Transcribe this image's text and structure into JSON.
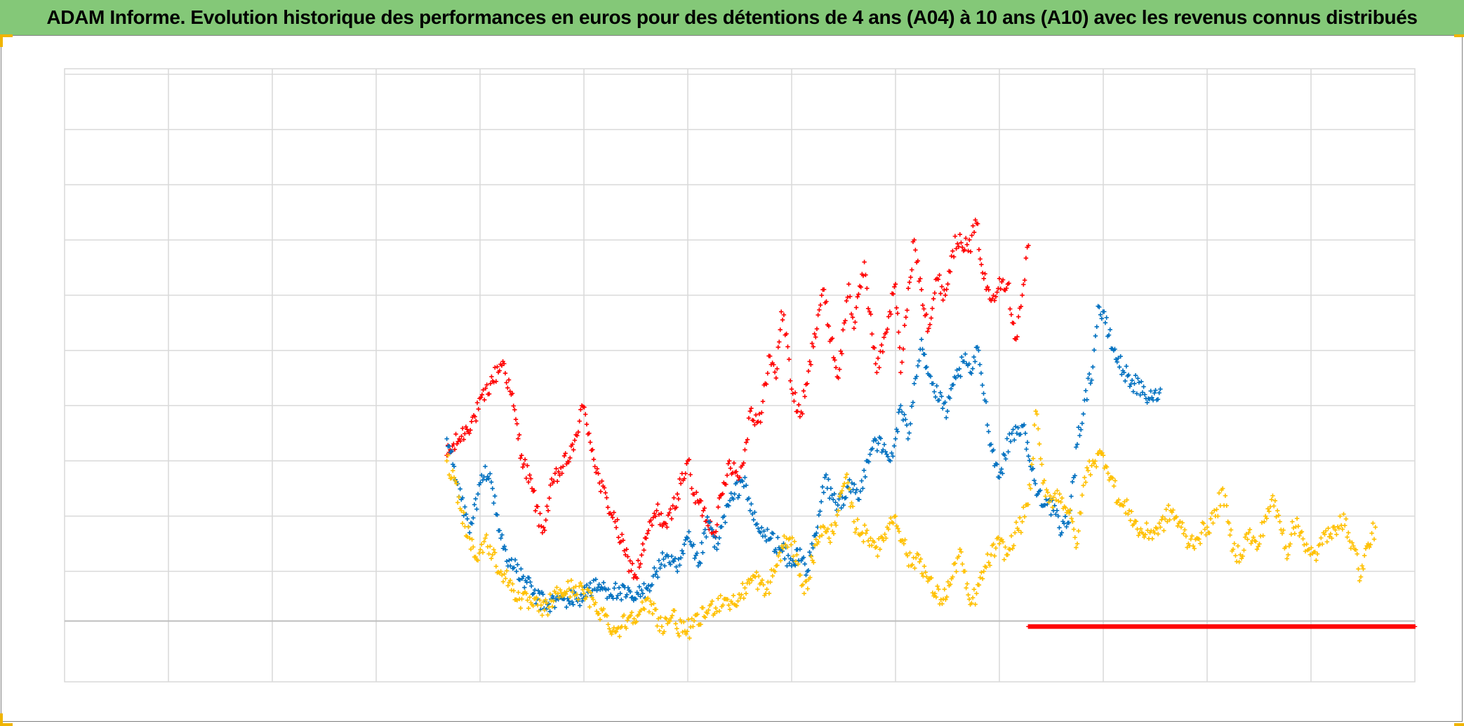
{
  "title": "ADAM Informe. Evolution historique des performances en euros pour des détentions de 4 ans (A04) à 10 ans (A10) avec les revenus connus distribués",
  "colors": {
    "title_bg": "#84c878",
    "grid": "#d9d9d9",
    "zero_line": "#bfbfbf",
    "handle": "#f0b400"
  },
  "chart_data": {
    "type": "scatter",
    "marker": "plus",
    "title": "ADAM Informe. Evolution historique des performances en euros pour des détentions de 4 ans (A04) à 10 ans (A10) avec les revenus connus distribués",
    "xlabel": "",
    "ylabel": "",
    "xlim": [
      0,
      13
    ],
    "ylim": [
      -1.1,
      10
    ],
    "x_gridlines": [
      1,
      2,
      3,
      4,
      5,
      6,
      7,
      8,
      9,
      10,
      11,
      12
    ],
    "y_gridlines": [
      0.0,
      0.9,
      1.9,
      2.9,
      3.9,
      4.9,
      5.9,
      6.9,
      7.9,
      8.9,
      9.9
    ],
    "zero_line": 0,
    "grid": true,
    "legend": "none",
    "series": [
      {
        "color": "#ff0000",
        "points": [
          [
            3.68,
            3.0
          ],
          [
            3.8,
            3.3
          ],
          [
            3.95,
            3.7
          ],
          [
            4.1,
            4.3
          ],
          [
            4.22,
            4.7
          ],
          [
            4.3,
            4.1
          ],
          [
            4.4,
            3.0
          ],
          [
            4.5,
            2.4
          ],
          [
            4.6,
            1.6
          ],
          [
            4.7,
            2.5
          ],
          [
            4.8,
            2.8
          ],
          [
            4.9,
            3.1
          ],
          [
            4.98,
            3.9
          ],
          [
            5.05,
            3.4
          ],
          [
            5.15,
            2.5
          ],
          [
            5.3,
            1.8
          ],
          [
            5.4,
            1.2
          ],
          [
            5.5,
            0.8
          ],
          [
            5.6,
            1.5
          ],
          [
            5.7,
            2.0
          ],
          [
            5.8,
            1.7
          ],
          [
            5.9,
            2.3
          ],
          [
            6.0,
            2.9
          ],
          [
            6.05,
            2.3
          ],
          [
            6.15,
            2.0
          ],
          [
            6.25,
            1.6
          ],
          [
            6.4,
            2.9
          ],
          [
            6.5,
            2.6
          ],
          [
            6.55,
            3.1
          ],
          [
            6.6,
            3.8
          ],
          [
            6.7,
            3.6
          ],
          [
            6.78,
            4.8
          ],
          [
            6.85,
            4.4
          ],
          [
            6.9,
            5.6
          ],
          [
            6.95,
            5.2
          ],
          [
            7.0,
            4.2
          ],
          [
            7.08,
            3.7
          ],
          [
            7.15,
            4.3
          ],
          [
            7.22,
            5.2
          ],
          [
            7.3,
            6.0
          ],
          [
            7.38,
            5.1
          ],
          [
            7.45,
            4.4
          ],
          [
            7.55,
            6.1
          ],
          [
            7.6,
            5.3
          ],
          [
            7.7,
            6.5
          ],
          [
            7.75,
            5.6
          ],
          [
            7.82,
            4.5
          ],
          [
            7.9,
            5.2
          ],
          [
            8.0,
            6.1
          ],
          [
            8.05,
            4.5
          ],
          [
            8.1,
            5.5
          ],
          [
            8.18,
            6.9
          ],
          [
            8.25,
            6.0
          ],
          [
            8.32,
            5.3
          ],
          [
            8.4,
            6.2
          ],
          [
            8.48,
            5.9
          ],
          [
            8.55,
            6.7
          ],
          [
            8.62,
            7.0
          ],
          [
            8.7,
            6.7
          ],
          [
            8.78,
            7.2
          ],
          [
            8.85,
            6.2
          ],
          [
            8.92,
            5.8
          ],
          [
            9.0,
            6.2
          ],
          [
            9.08,
            6.1
          ],
          [
            9.16,
            5.1
          ],
          [
            9.22,
            5.9
          ],
          [
            9.28,
            6.8
          ]
        ]
      },
      {
        "color": "#0070c0",
        "points": [
          [
            3.68,
            3.3
          ],
          [
            3.75,
            2.8
          ],
          [
            3.82,
            2.2
          ],
          [
            3.9,
            1.6
          ],
          [
            3.98,
            2.3
          ],
          [
            4.05,
            2.8
          ],
          [
            4.12,
            2.4
          ],
          [
            4.2,
            1.5
          ],
          [
            4.28,
            1.1
          ],
          [
            4.35,
            0.9
          ],
          [
            4.45,
            0.7
          ],
          [
            4.55,
            0.4
          ],
          [
            4.65,
            0.3
          ],
          [
            4.8,
            0.4
          ],
          [
            4.95,
            0.4
          ],
          [
            5.05,
            0.6
          ],
          [
            5.2,
            0.6
          ],
          [
            5.35,
            0.5
          ],
          [
            5.5,
            0.4
          ],
          [
            5.6,
            0.6
          ],
          [
            5.7,
            0.9
          ],
          [
            5.8,
            1.2
          ],
          [
            5.9,
            0.9
          ],
          [
            6.0,
            1.5
          ],
          [
            6.1,
            1.0
          ],
          [
            6.2,
            1.8
          ],
          [
            6.28,
            1.3
          ],
          [
            6.35,
            1.9
          ],
          [
            6.45,
            2.3
          ],
          [
            6.55,
            2.6
          ],
          [
            6.6,
            2.0
          ],
          [
            6.7,
            1.6
          ],
          [
            6.8,
            1.5
          ],
          [
            6.9,
            1.3
          ],
          [
            7.0,
            1.0
          ],
          [
            7.08,
            1.3
          ],
          [
            7.15,
            0.9
          ],
          [
            7.25,
            1.7
          ],
          [
            7.32,
            2.6
          ],
          [
            7.4,
            2.2
          ],
          [
            7.5,
            2.1
          ],
          [
            7.58,
            2.5
          ],
          [
            7.65,
            2.2
          ],
          [
            7.72,
            2.9
          ],
          [
            7.8,
            3.3
          ],
          [
            7.88,
            3.1
          ],
          [
            7.95,
            2.9
          ],
          [
            8.0,
            3.3
          ],
          [
            8.05,
            3.9
          ],
          [
            8.12,
            3.3
          ],
          [
            8.18,
            4.3
          ],
          [
            8.25,
            5.1
          ],
          [
            8.3,
            4.6
          ],
          [
            8.35,
            4.3
          ],
          [
            8.42,
            4.0
          ],
          [
            8.5,
            3.8
          ],
          [
            8.58,
            4.4
          ],
          [
            8.66,
            4.7
          ],
          [
            8.72,
            4.5
          ],
          [
            8.8,
            4.9
          ],
          [
            8.86,
            4.0
          ],
          [
            8.92,
            3.2
          ],
          [
            9.0,
            2.6
          ],
          [
            9.05,
            3.0
          ],
          [
            9.12,
            3.4
          ],
          [
            9.18,
            3.5
          ],
          [
            9.25,
            3.4
          ],
          [
            9.3,
            2.8
          ],
          [
            9.37,
            2.3
          ],
          [
            9.45,
            2.2
          ],
          [
            9.52,
            2.0
          ],
          [
            9.6,
            1.6
          ],
          [
            9.68,
            2.0
          ],
          [
            9.75,
            3.2
          ],
          [
            9.82,
            4.0
          ],
          [
            9.9,
            4.6
          ],
          [
            9.95,
            5.7
          ],
          [
            10.02,
            5.4
          ],
          [
            10.1,
            4.9
          ],
          [
            10.2,
            4.5
          ],
          [
            10.3,
            4.3
          ],
          [
            10.4,
            4.1
          ],
          [
            10.48,
            4.0
          ],
          [
            10.55,
            4.2
          ]
        ]
      },
      {
        "color": "#ffc000",
        "points": [
          [
            3.68,
            2.9
          ],
          [
            3.75,
            2.6
          ],
          [
            3.82,
            2.0
          ],
          [
            3.9,
            1.5
          ],
          [
            3.98,
            1.1
          ],
          [
            4.05,
            1.5
          ],
          [
            4.12,
            1.2
          ],
          [
            4.2,
            0.9
          ],
          [
            4.28,
            0.7
          ],
          [
            4.38,
            0.4
          ],
          [
            4.5,
            0.3
          ],
          [
            4.62,
            0.2
          ],
          [
            4.75,
            0.5
          ],
          [
            4.9,
            0.6
          ],
          [
            5.0,
            0.5
          ],
          [
            5.1,
            0.3
          ],
          [
            5.2,
            0.1
          ],
          [
            5.3,
            -0.2
          ],
          [
            5.45,
            0.1
          ],
          [
            5.55,
            0.2
          ],
          [
            5.65,
            0.3
          ],
          [
            5.75,
            -0.1
          ],
          [
            5.85,
            0.1
          ],
          [
            5.95,
            -0.2
          ],
          [
            6.05,
            -0.1
          ],
          [
            6.2,
            0.2
          ],
          [
            6.35,
            0.4
          ],
          [
            6.45,
            0.3
          ],
          [
            6.55,
            0.6
          ],
          [
            6.65,
            0.8
          ],
          [
            6.75,
            0.5
          ],
          [
            6.85,
            1.0
          ],
          [
            6.95,
            1.5
          ],
          [
            7.05,
            1.2
          ],
          [
            7.12,
            0.5
          ],
          [
            7.2,
            1.1
          ],
          [
            7.28,
            1.7
          ],
          [
            7.36,
            1.5
          ],
          [
            7.45,
            2.0
          ],
          [
            7.52,
            2.6
          ],
          [
            7.6,
            1.8
          ],
          [
            7.68,
            1.6
          ],
          [
            7.76,
            1.5
          ],
          [
            7.85,
            1.3
          ],
          [
            7.92,
            1.7
          ],
          [
            8.0,
            1.9
          ],
          [
            8.08,
            1.4
          ],
          [
            8.15,
            1.0
          ],
          [
            8.22,
            1.2
          ],
          [
            8.3,
            0.8
          ],
          [
            8.38,
            0.5
          ],
          [
            8.46,
            0.4
          ],
          [
            8.55,
            0.8
          ],
          [
            8.62,
            1.3
          ],
          [
            8.68,
            0.6
          ],
          [
            8.72,
            0.3
          ],
          [
            8.78,
            0.5
          ],
          [
            8.85,
            0.9
          ],
          [
            8.92,
            1.2
          ],
          [
            9.0,
            1.4
          ],
          [
            9.08,
            1.2
          ],
          [
            9.15,
            1.6
          ],
          [
            9.22,
            1.8
          ],
          [
            9.3,
            2.4
          ],
          [
            9.35,
            3.8
          ],
          [
            9.42,
            2.5
          ],
          [
            9.5,
            2.2
          ],
          [
            9.58,
            2.3
          ],
          [
            9.66,
            2.0
          ],
          [
            9.75,
            1.4
          ],
          [
            9.82,
            2.6
          ],
          [
            9.9,
            2.9
          ],
          [
            10.0,
            3.0
          ],
          [
            10.08,
            2.6
          ],
          [
            10.16,
            2.1
          ],
          [
            10.25,
            2.0
          ],
          [
            10.35,
            1.6
          ],
          [
            10.45,
            1.6
          ],
          [
            10.55,
            1.7
          ],
          [
            10.65,
            2.0
          ],
          [
            10.75,
            1.7
          ],
          [
            10.82,
            1.4
          ],
          [
            10.9,
            1.5
          ],
          [
            11.0,
            1.7
          ],
          [
            11.08,
            1.9
          ],
          [
            11.15,
            2.4
          ],
          [
            11.2,
            1.8
          ],
          [
            11.25,
            1.3
          ],
          [
            11.32,
            1.2
          ],
          [
            11.4,
            1.6
          ],
          [
            11.48,
            1.3
          ],
          [
            11.55,
            1.8
          ],
          [
            11.62,
            2.2
          ],
          [
            11.7,
            1.8
          ],
          [
            11.78,
            1.2
          ],
          [
            11.82,
            1.8
          ],
          [
            11.9,
            1.6
          ],
          [
            11.98,
            1.3
          ],
          [
            12.05,
            1.1
          ],
          [
            12.12,
            1.6
          ],
          [
            12.2,
            1.5
          ],
          [
            12.28,
            1.9
          ],
          [
            12.36,
            1.6
          ],
          [
            12.42,
            1.3
          ],
          [
            12.48,
            0.8
          ],
          [
            12.55,
            1.4
          ],
          [
            12.62,
            1.7
          ]
        ]
      },
      {
        "color": "#ff0000",
        "points": [
          [
            9.28,
            -0.1
          ],
          [
            10.0,
            -0.1
          ],
          [
            10.5,
            -0.1
          ],
          [
            11.0,
            -0.1
          ],
          [
            11.5,
            -0.1
          ],
          [
            12.0,
            -0.1
          ],
          [
            12.5,
            -0.1
          ],
          [
            13.0,
            -0.1
          ]
        ]
      }
    ]
  }
}
